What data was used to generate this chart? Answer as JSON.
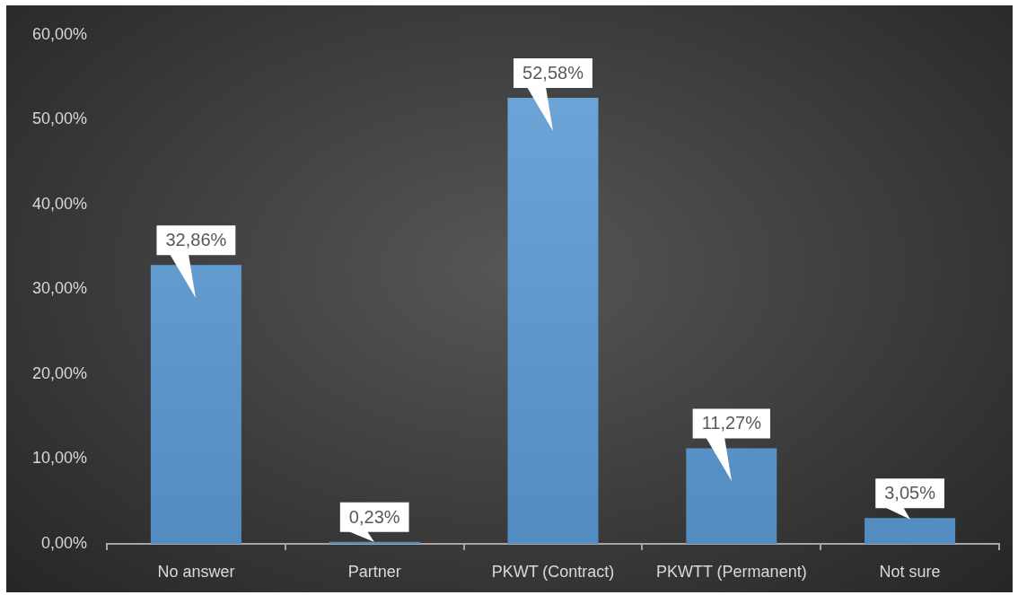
{
  "chart_data": {
    "type": "bar",
    "categories": [
      "No answer",
      "Partner",
      "PKWT (Contract)",
      "PKWTT (Permanent)",
      "Not sure"
    ],
    "values": [
      32.86,
      0.23,
      52.58,
      11.27,
      3.05
    ],
    "value_labels": [
      "32,86%",
      "0,23%",
      "52,58%",
      "11,27%",
      "3,05%"
    ],
    "color": "#5b9bd5",
    "ylim": [
      0,
      60
    ],
    "yticks": [
      {
        "value": 0,
        "label": "0,00%"
      },
      {
        "value": 10,
        "label": "10,00%"
      },
      {
        "value": 20,
        "label": "20,00%"
      },
      {
        "value": 30,
        "label": "30,00%"
      },
      {
        "value": 40,
        "label": "40,00%"
      },
      {
        "value": 50,
        "label": "50,00%"
      },
      {
        "value": 60,
        "label": "60,00%"
      }
    ],
    "grid": false,
    "legend": false
  }
}
